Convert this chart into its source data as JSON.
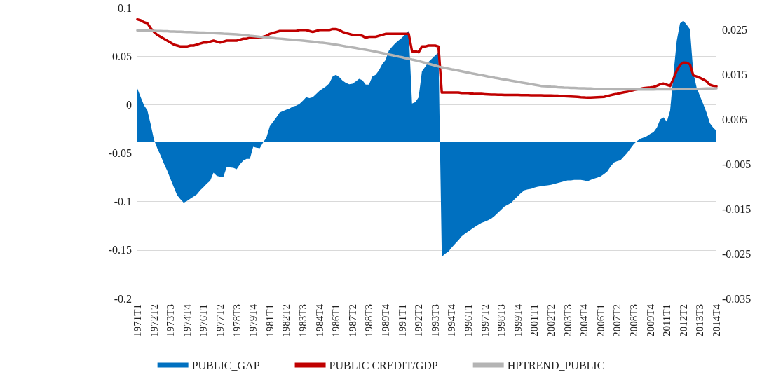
{
  "chart_data": {
    "type": "line",
    "categories": [
      "1971T1",
      null,
      null,
      null,
      null,
      "1972T2",
      null,
      null,
      null,
      null,
      "1973T3",
      null,
      null,
      null,
      null,
      "1974T4",
      null,
      null,
      null,
      null,
      "1976T1",
      null,
      null,
      null,
      null,
      "1977T2",
      null,
      null,
      null,
      null,
      "1978T3",
      null,
      null,
      null,
      null,
      "1979T4",
      null,
      null,
      null,
      null,
      "1981T1",
      null,
      null,
      null,
      null,
      "1982T2",
      null,
      null,
      null,
      null,
      "1983T3",
      null,
      null,
      null,
      null,
      "1984T4",
      null,
      null,
      null,
      null,
      "1986T1",
      null,
      null,
      null,
      null,
      "1987T2",
      null,
      null,
      null,
      null,
      "1988T3",
      null,
      null,
      null,
      null,
      "1989T4",
      null,
      null,
      null,
      null,
      "1991T1",
      null,
      null,
      null,
      null,
      "1992T2",
      null,
      null,
      null,
      null,
      "1993T3",
      null,
      null,
      null,
      null,
      "1994T4",
      null,
      null,
      null,
      null,
      "1996T1",
      null,
      null,
      null,
      null,
      "1997T2",
      null,
      null,
      null,
      null,
      "1998T3",
      null,
      null,
      null,
      null,
      "1999T4",
      null,
      null,
      null,
      null,
      "2001T1",
      null,
      null,
      null,
      null,
      "2002T2",
      null,
      null,
      null,
      null,
      "2003T3",
      null,
      null,
      null,
      null,
      "2004T4",
      null,
      null,
      null,
      null,
      "2006T1",
      null,
      null,
      null,
      null,
      "2007T2",
      null,
      null,
      null,
      null,
      "2008T3",
      null,
      null,
      null,
      null,
      "2009T4",
      null,
      null,
      null,
      null,
      "2011T1",
      null,
      null,
      null,
      null,
      "2012T2",
      null,
      null,
      null,
      null,
      "2013T3",
      null,
      null,
      null,
      null,
      "2014T4"
    ],
    "series": [
      {
        "name": "PUBLIC_GAP",
        "type": "area",
        "axis": "y2",
        "color": "#0070c0",
        "values": [
          0.0119,
          0.01,
          0.0082,
          0.0071,
          0.004,
          0.0005,
          -0.0014,
          -0.003,
          -0.0048,
          -0.0064,
          -0.0083,
          -0.0101,
          -0.0119,
          -0.0128,
          -0.0136,
          -0.0132,
          -0.0127,
          -0.0122,
          -0.0117,
          -0.0108,
          -0.0101,
          -0.0093,
          -0.0087,
          -0.0069,
          -0.0076,
          -0.0078,
          -0.0078,
          -0.0056,
          -0.0057,
          -0.0058,
          -0.0061,
          -0.005,
          -0.0042,
          -0.0038,
          -0.0038,
          -0.0011,
          -0.0013,
          -0.0014,
          -0.0001,
          0.001,
          0.0035,
          0.0045,
          0.0055,
          0.0066,
          0.0069,
          0.0072,
          0.0075,
          0.0079,
          0.0081,
          0.0085,
          0.0092,
          0.01,
          0.0098,
          0.01,
          0.0107,
          0.0114,
          0.0119,
          0.0124,
          0.0131,
          0.0146,
          0.015,
          0.0145,
          0.0137,
          0.0132,
          0.0129,
          0.013,
          0.0135,
          0.0141,
          0.0138,
          0.0128,
          0.0128,
          0.0146,
          0.015,
          0.016,
          0.0174,
          0.0183,
          0.0204,
          0.0213,
          0.0221,
          0.0227,
          0.0233,
          0.0242,
          0.0248,
          0.0086,
          0.0089,
          0.01,
          0.0158,
          0.0168,
          0.0179,
          0.0186,
          0.0193,
          0.02,
          -0.0257,
          -0.025,
          -0.0245,
          -0.0236,
          -0.0228,
          -0.022,
          -0.0211,
          -0.0205,
          -0.02,
          -0.0195,
          -0.019,
          -0.0185,
          -0.0181,
          -0.0178,
          -0.0175,
          -0.0171,
          -0.0165,
          -0.0158,
          -0.0151,
          -0.0144,
          -0.014,
          -0.0136,
          -0.0128,
          -0.0121,
          -0.0114,
          -0.0108,
          -0.0106,
          -0.0105,
          -0.0102,
          -0.01,
          -0.0099,
          -0.0098,
          -0.0097,
          -0.0096,
          -0.0094,
          -0.0092,
          -0.009,
          -0.0088,
          -0.0086,
          -0.0086,
          -0.0085,
          -0.0085,
          -0.0085,
          -0.0086,
          -0.0088,
          -0.0085,
          -0.0082,
          -0.008,
          -0.0077,
          -0.0072,
          -0.0066,
          -0.0055,
          -0.0046,
          -0.0043,
          -0.0041,
          -0.0033,
          -0.0025,
          -0.0015,
          -0.0005,
          0.0002,
          0.0007,
          0.001,
          0.0013,
          0.0018,
          0.0022,
          0.0032,
          0.005,
          0.0055,
          0.0045,
          0.007,
          0.015,
          0.0226,
          0.0265,
          0.0271,
          0.0262,
          0.0252,
          0.0155,
          0.0122,
          0.0103,
          0.0085,
          0.0066,
          0.0042,
          0.0032,
          0.0025
        ]
      },
      {
        "name": "PUBLIC CREDIT/GDP",
        "color": "#c00000",
        "values": [
          0.088,
          0.087,
          0.085,
          0.084,
          0.079,
          0.075,
          0.072,
          0.07,
          0.068,
          0.066,
          0.064,
          0.062,
          0.061,
          0.06,
          0.06,
          0.06,
          0.061,
          0.061,
          0.062,
          0.063,
          0.064,
          0.064,
          0.065,
          0.066,
          0.065,
          0.064,
          0.065,
          0.066,
          0.066,
          0.066,
          0.066,
          0.067,
          0.068,
          0.068,
          0.069,
          0.069,
          0.069,
          0.069,
          0.07,
          0.071,
          0.073,
          0.074,
          0.075,
          0.076,
          0.076,
          0.076,
          0.076,
          0.076,
          0.076,
          0.077,
          0.077,
          0.077,
          0.076,
          0.075,
          0.076,
          0.077,
          0.077,
          0.077,
          0.077,
          0.078,
          0.078,
          0.077,
          0.075,
          0.074,
          0.073,
          0.072,
          0.072,
          0.072,
          0.071,
          0.069,
          0.07,
          0.07,
          0.07,
          0.071,
          0.072,
          0.073,
          0.073,
          0.073,
          0.073,
          0.073,
          0.073,
          0.073,
          0.073,
          0.055,
          0.055,
          0.054,
          0.06,
          0.06,
          0.061,
          0.061,
          0.061,
          0.06,
          0.0125,
          0.0125,
          0.0125,
          0.0125,
          0.0125,
          0.0125,
          0.012,
          0.012,
          0.012,
          0.0115,
          0.011,
          0.011,
          0.011,
          0.0108,
          0.0106,
          0.0104,
          0.0103,
          0.0102,
          0.0101,
          0.01,
          0.01,
          0.01,
          0.01,
          0.01,
          0.0099,
          0.0098,
          0.0098,
          0.0097,
          0.0097,
          0.0096,
          0.0096,
          0.0095,
          0.0095,
          0.0094,
          0.0093,
          0.0092,
          0.009,
          0.0088,
          0.0086,
          0.0084,
          0.0082,
          0.008,
          0.0077,
          0.0075,
          0.0072,
          0.0073,
          0.0075,
          0.0077,
          0.0079,
          0.008,
          0.0088,
          0.0097,
          0.0105,
          0.0112,
          0.012,
          0.0127,
          0.0132,
          0.0142,
          0.015,
          0.0158,
          0.0164,
          0.017,
          0.0175,
          0.0178,
          0.0182,
          0.0195,
          0.021,
          0.0217,
          0.0205,
          0.0193,
          0.0265,
          0.035,
          0.041,
          0.0434,
          0.0432,
          0.0414,
          0.0302,
          0.029,
          0.0277,
          0.026,
          0.0241,
          0.0205,
          0.0195,
          0.0188
        ]
      },
      {
        "name": "HPTREND_PUBLIC",
        "color": "#b4b4b4",
        "values": [
          0.0766,
          0.0765,
          0.0764,
          0.0763,
          0.0762,
          0.0761,
          0.076,
          0.0759,
          0.0758,
          0.0757,
          0.0755,
          0.0754,
          0.0753,
          0.0752,
          0.075,
          0.0749,
          0.0748,
          0.0747,
          0.0746,
          0.0744,
          0.0743,
          0.0741,
          0.074,
          0.0738,
          0.0736,
          0.0734,
          0.0732,
          0.0731,
          0.0729,
          0.0727,
          0.0725,
          0.0722,
          0.0718,
          0.0715,
          0.0711,
          0.0708,
          0.0704,
          0.07,
          0.0697,
          0.0694,
          0.0691,
          0.0688,
          0.0684,
          0.0681,
          0.0678,
          0.0675,
          0.0672,
          0.0669,
          0.0666,
          0.0663,
          0.066,
          0.0657,
          0.0653,
          0.0649,
          0.0645,
          0.0641,
          0.0638,
          0.0634,
          0.063,
          0.0624,
          0.0619,
          0.0613,
          0.0607,
          0.0601,
          0.0596,
          0.059,
          0.0584,
          0.0578,
          0.0572,
          0.0566,
          0.056,
          0.0553,
          0.0546,
          0.0539,
          0.0532,
          0.0525,
          0.0518,
          0.051,
          0.0503,
          0.0495,
          0.0488,
          0.048,
          0.0473,
          0.0465,
          0.0458,
          0.045,
          0.0441,
          0.0431,
          0.0422,
          0.0413,
          0.0404,
          0.0394,
          0.0385,
          0.0378,
          0.0371,
          0.0364,
          0.0358,
          0.0351,
          0.0344,
          0.0337,
          0.033,
          0.0323,
          0.0317,
          0.031,
          0.0304,
          0.0297,
          0.029,
          0.0284,
          0.0277,
          0.0271,
          0.0265,
          0.0259,
          0.0253,
          0.0247,
          0.0241,
          0.0235,
          0.0229,
          0.0223,
          0.0217,
          0.0211,
          0.0205,
          0.0199,
          0.0193,
          0.019,
          0.0188,
          0.0185,
          0.0183,
          0.018,
          0.0178,
          0.0176,
          0.0175,
          0.0173,
          0.0172,
          0.017,
          0.0169,
          0.0168,
          0.0167,
          0.0166,
          0.0164,
          0.0163,
          0.0162,
          0.0161,
          0.016,
          0.0159,
          0.0158,
          0.0157,
          0.0157,
          0.0157,
          0.0157,
          0.0157,
          0.0157,
          0.0156,
          0.0156,
          0.0156,
          0.0156,
          0.0156,
          0.0156,
          0.0157,
          0.0157,
          0.0157,
          0.0158,
          0.0158,
          0.0158,
          0.0159,
          0.0159,
          0.016,
          0.0161,
          0.0162,
          0.0162,
          0.0163,
          0.0164,
          0.0165,
          0.0166,
          0.0166,
          0.0167,
          0.0168
        ]
      }
    ],
    "ylim": [
      -0.2,
      0.1
    ],
    "yticks": [
      -0.2,
      -0.15,
      -0.1,
      -0.05,
      0,
      0.05,
      0.1
    ],
    "y2lim": [
      -0.035,
      0.03
    ],
    "y2ticks": [
      -0.035,
      -0.025,
      -0.015,
      -0.005,
      0.005,
      0.015,
      0.025
    ],
    "grid": "y",
    "legend": "bottom",
    "marker": "none",
    "line_style": "solid"
  }
}
